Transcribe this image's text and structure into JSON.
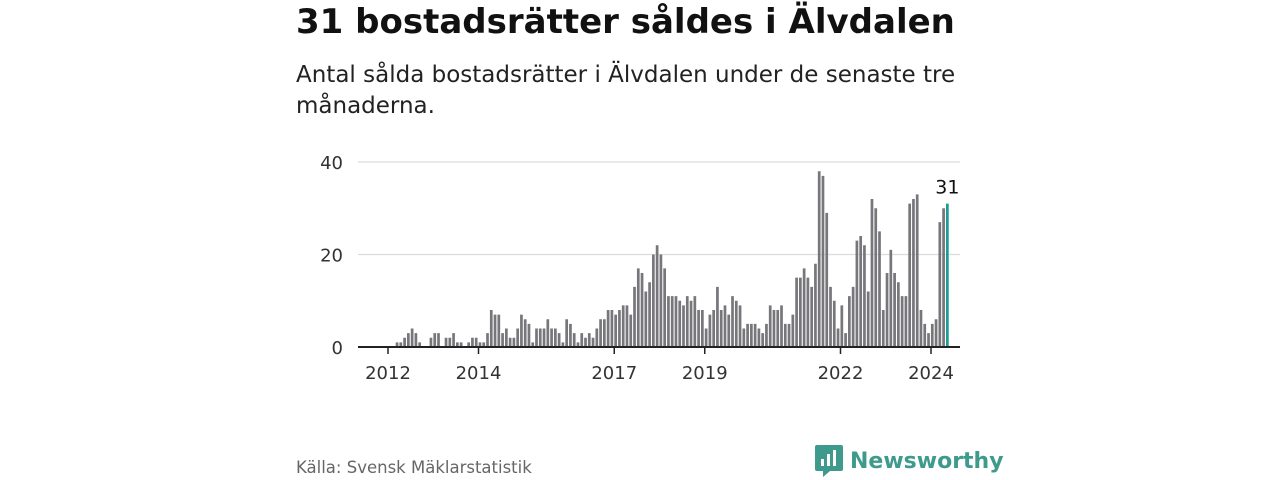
{
  "title": "31 bostadsrätter såldes i Älvdalen",
  "subtitle": "Antal sålda bostadsrätter i Älvdalen under de senaste tre månaderna.",
  "source": "Källa: Svensk Mäklarstatistik",
  "brand": {
    "name": "Newsworthy",
    "icon": "newsworthy-logo-icon"
  },
  "colors": {
    "bar": "#77767b",
    "highlight": "#189e94",
    "grid": "#dcdcdc",
    "axis": "#222222",
    "brand": "#3f9a8e"
  },
  "chart_data": {
    "type": "bar",
    "title": "31 bostadsrätter såldes i Älvdalen",
    "xlabel": "",
    "ylabel": "",
    "ylim": [
      0,
      40
    ],
    "yticks": [
      0,
      20,
      40
    ],
    "start_year": 2011.95,
    "end_year": 2024.3,
    "step_years": 0.0833,
    "xticks": [
      {
        "label": "2012",
        "year": 2012.0
      },
      {
        "label": "2014",
        "year": 2014.0
      },
      {
        "label": "2017",
        "year": 2017.0
      },
      {
        "label": "2019",
        "year": 2019.0
      },
      {
        "label": "2022",
        "year": 2022.0
      },
      {
        "label": "2024",
        "year": 2024.0
      }
    ],
    "highlight_label": "31",
    "values": [
      0,
      0,
      0,
      1,
      1,
      2,
      3,
      4,
      3,
      1,
      0,
      0,
      2,
      3,
      3,
      0,
      2,
      2,
      3,
      1,
      1,
      0,
      1,
      2,
      2,
      1,
      1,
      3,
      8,
      7,
      7,
      3,
      4,
      2,
      2,
      4,
      7,
      6,
      5,
      1,
      4,
      4,
      4,
      6,
      4,
      4,
      3,
      1,
      6,
      5,
      3,
      1,
      3,
      2,
      3,
      2,
      4,
      6,
      6,
      8,
      8,
      7,
      8,
      9,
      9,
      7,
      13,
      17,
      16,
      12,
      14,
      20,
      22,
      20,
      17,
      11,
      11,
      11,
      10,
      9,
      11,
      10,
      11,
      8,
      8,
      4,
      7,
      8,
      13,
      8,
      9,
      7,
      11,
      10,
      9,
      4,
      5,
      5,
      5,
      4,
      3,
      5,
      9,
      8,
      8,
      9,
      5,
      5,
      7,
      15,
      15,
      17,
      15,
      13,
      18,
      38,
      37,
      29,
      13,
      10,
      4,
      9,
      3,
      11,
      13,
      23,
      24,
      22,
      12,
      32,
      30,
      25,
      8,
      16,
      21,
      16,
      14,
      11,
      11,
      31,
      32,
      33,
      8,
      5,
      3,
      5,
      6,
      27,
      30,
      31
    ]
  }
}
